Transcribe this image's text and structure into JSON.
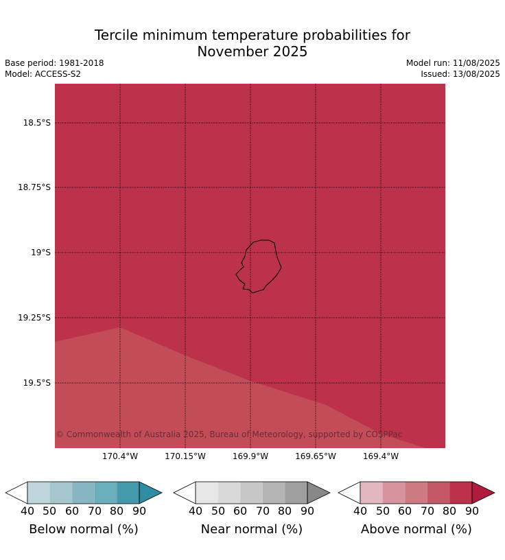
{
  "header": {
    "title_line1": "Tercile minimum temperature probabilities for",
    "title_line2": "November 2025",
    "base_period": "Base period: 1981-2018",
    "model": "Model: ACCESS-S2",
    "model_run": "Model run: 11/08/2025",
    "issued": "Issued: 13/08/2025"
  },
  "map": {
    "latitude_ticks": [
      "18.5°S",
      "18.75°S",
      "19°S",
      "19.25°S",
      "19.5°S"
    ],
    "longitude_ticks": [
      "170.4°W",
      "170.15°W",
      "169.9°W",
      "169.65°W",
      "169.4°W"
    ],
    "credit": "© Commonwealth of Australia 2025, Bureau of Meteorology, supported by COSPPac",
    "regions": [
      {
        "category": "Above normal",
        "probability_bin": "80-90",
        "color": "#bc324b"
      },
      {
        "category": "Above normal",
        "probability_bin": "70-80",
        "color": "#c24d58"
      }
    ],
    "coastline_color": "#000000",
    "gridline_style": "dotted"
  },
  "colorbars": [
    {
      "label": "Below normal (%)",
      "ticks": [
        "40",
        "50",
        "60",
        "70",
        "80",
        "90"
      ],
      "colors": [
        "#ffffff",
        "#bed5dc",
        "#a5c6cc",
        "#87b6c2",
        "#6aaebb",
        "#4499aa",
        "#2f8ca2"
      ]
    },
    {
      "label": "Near normal (%)",
      "ticks": [
        "40",
        "50",
        "60",
        "70",
        "80",
        "90"
      ],
      "colors": [
        "#ffffff",
        "#e6e6e6",
        "#d9d9d9",
        "#c7c7c7",
        "#b4b4b4",
        "#9f9f9f",
        "#888888"
      ]
    },
    {
      "label": "Above normal (%)",
      "ticks": [
        "40",
        "50",
        "60",
        "70",
        "80",
        "90"
      ],
      "colors": [
        "#ffffff",
        "#e2b8be",
        "#d6959e",
        "#cd7a83",
        "#c35966",
        "#bc324b",
        "#b01b3d"
      ]
    }
  ]
}
